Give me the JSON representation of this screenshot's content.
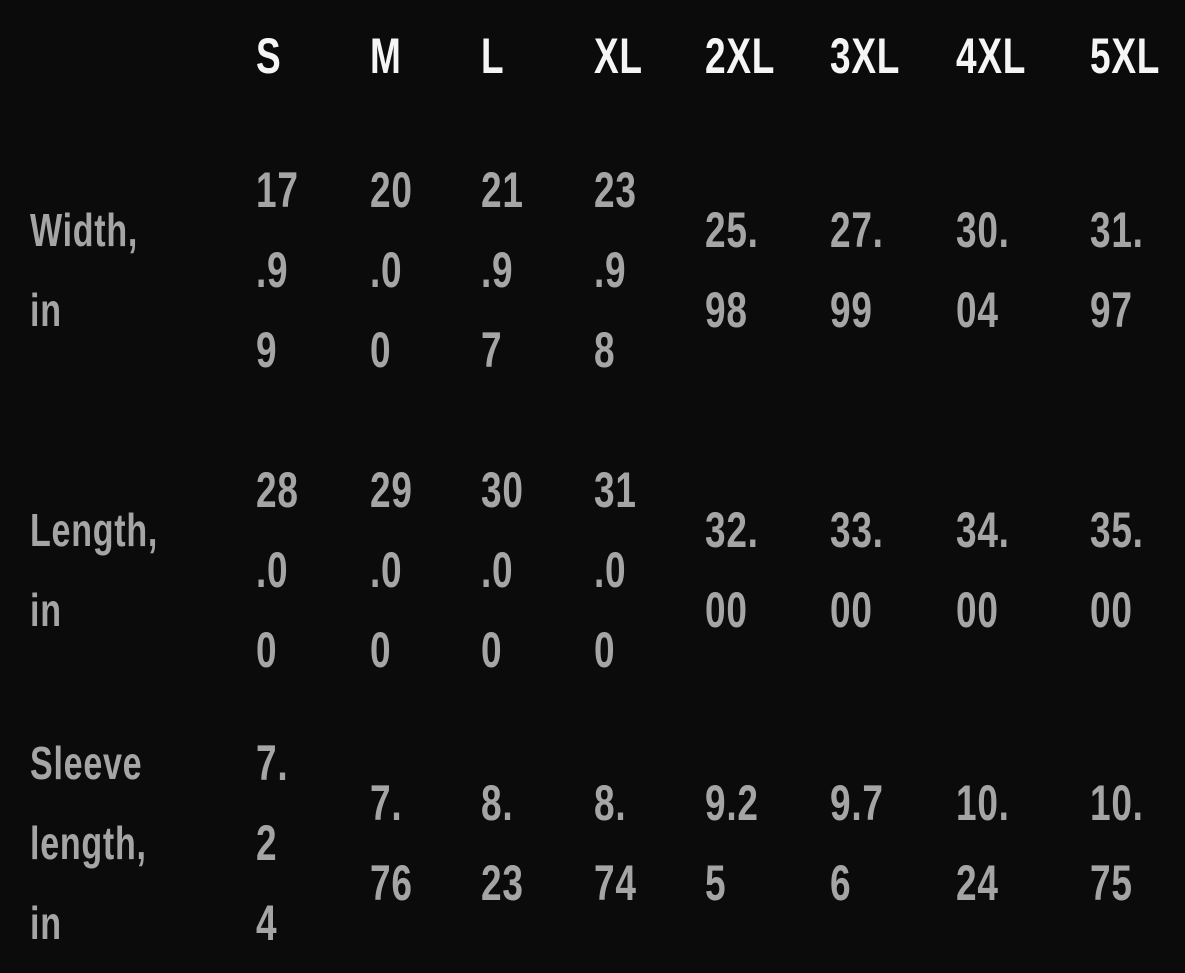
{
  "colors": {
    "background": "#0b0b0b",
    "header_text": "#f5f5f5",
    "value_text": "#a5a5a5"
  },
  "size_chart": {
    "columns": [
      "S",
      "M",
      "L",
      "XL",
      "2XL",
      "3XL",
      "4XL",
      "5XL"
    ],
    "rows": [
      {
        "label": "Width, in",
        "label_lines": [
          "Width,",
          "in"
        ],
        "cells": [
          [
            "17",
            ".9",
            "9"
          ],
          [
            "20",
            ".0",
            "0"
          ],
          [
            "21",
            ".9",
            "7"
          ],
          [
            "23",
            ".9",
            "8"
          ],
          [
            "25.",
            "98"
          ],
          [
            "27.",
            "99"
          ],
          [
            "30.",
            "04"
          ],
          [
            "31.",
            "97"
          ]
        ]
      },
      {
        "label": "Length, in",
        "label_lines": [
          "Length,",
          "in"
        ],
        "cells": [
          [
            "28",
            ".0",
            "0"
          ],
          [
            "29",
            ".0",
            "0"
          ],
          [
            "30",
            ".0",
            "0"
          ],
          [
            "31",
            ".0",
            "0"
          ],
          [
            "32.",
            "00"
          ],
          [
            "33.",
            "00"
          ],
          [
            "34.",
            "00"
          ],
          [
            "35.",
            "00"
          ]
        ]
      },
      {
        "label": "Sleeve length, in",
        "label_lines": [
          "Sleeve",
          "length,",
          "in"
        ],
        "cells": [
          [
            "7.",
            "2",
            "4"
          ],
          [
            "7.",
            "76"
          ],
          [
            "8.",
            "23"
          ],
          [
            "8.",
            "74"
          ],
          [
            "9.2",
            "5"
          ],
          [
            "9.7",
            "6"
          ],
          [
            "10.",
            "24"
          ],
          [
            "10.",
            "75"
          ]
        ]
      }
    ]
  },
  "chart_data": {
    "type": "table",
    "columns": [
      "S",
      "M",
      "L",
      "XL",
      "2XL",
      "3XL",
      "4XL",
      "5XL"
    ],
    "rows": [
      {
        "label": "Width, in",
        "values": [
          17.99,
          20.0,
          21.97,
          23.98,
          25.98,
          27.99,
          30.04,
          31.97
        ]
      },
      {
        "label": "Length, in",
        "values": [
          28.0,
          29.0,
          30.0,
          31.0,
          32.0,
          33.0,
          34.0,
          35.0
        ]
      },
      {
        "label": "Sleeve length, in",
        "values": [
          7.24,
          7.76,
          8.23,
          8.74,
          9.25,
          9.76,
          10.24,
          10.75
        ]
      }
    ]
  }
}
